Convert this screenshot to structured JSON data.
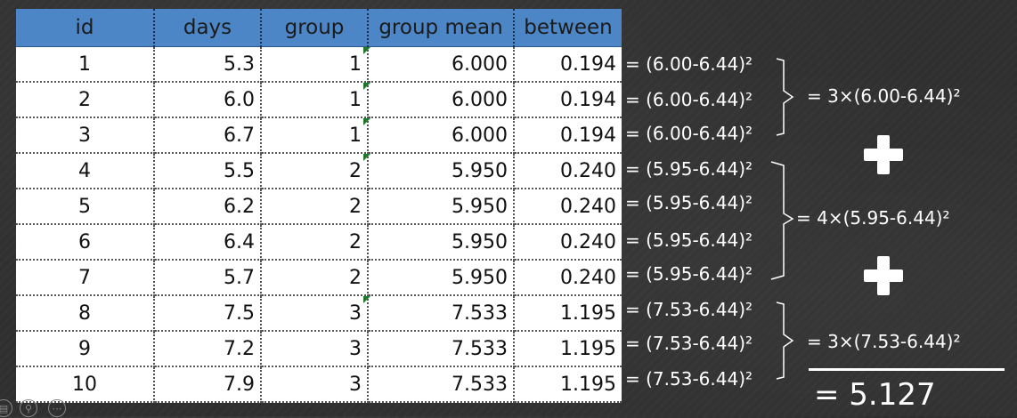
{
  "table": {
    "headers": [
      "id",
      "days",
      "group",
      "group mean",
      "between"
    ],
    "rows": [
      [
        "1",
        "5.3",
        "1",
        "6.000",
        "0.194"
      ],
      [
        "2",
        "6.0",
        "1",
        "6.000",
        "0.194"
      ],
      [
        "3",
        "6.7",
        "1",
        "6.000",
        "0.194"
      ],
      [
        "4",
        "5.5",
        "2",
        "5.950",
        "0.240"
      ],
      [
        "5",
        "6.2",
        "2",
        "5.950",
        "0.240"
      ],
      [
        "6",
        "6.4",
        "2",
        "5.950",
        "0.240"
      ],
      [
        "7",
        "5.7",
        "2",
        "5.950",
        "0.240"
      ],
      [
        "8",
        "7.5",
        "3",
        "7.533",
        "1.195"
      ],
      [
        "9",
        "7.2",
        "3",
        "7.533",
        "1.195"
      ],
      [
        "10",
        "7.9",
        "3",
        "7.533",
        "1.195"
      ]
    ],
    "flagged_rows": [
      0,
      1,
      2,
      3,
      7
    ],
    "header_color": "#4c86c6"
  },
  "equations": [
    "= (6.00-6.44)²",
    "= (6.00-6.44)²",
    "= (6.00-6.44)²",
    "= (5.95-6.44)²",
    "= (5.95-6.44)²",
    "= (5.95-6.44)²",
    "= (5.95-6.44)²",
    "= (7.53-6.44)²",
    "= (7.53-6.44)²",
    "= (7.53-6.44)²"
  ],
  "group_sums": [
    "= 3×(6.00-6.44)²",
    "= 4×(5.95-6.44)²",
    "= 3×(7.53-6.44)²"
  ],
  "total": "= 5.127",
  "icons": [
    "plus-icon",
    "plus-icon",
    "subtitles-icon",
    "zoom-icon",
    "more-icon"
  ]
}
